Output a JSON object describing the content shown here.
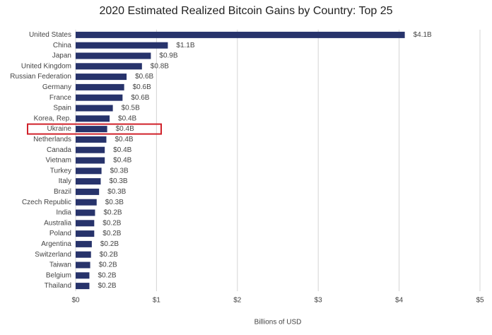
{
  "chart_data": {
    "type": "hbar",
    "title": "2020 Estimated Realized Bitcoin Gains by Country: Top 25",
    "x_label": "Billions of USD",
    "categories": [
      "United States",
      "China",
      "Japan",
      "United Kingdom",
      "Russian Federation",
      "Germany",
      "France",
      "Spain",
      "Korea, Rep.",
      "Ukraine",
      "Netherlands",
      "Canada",
      "Vietnam",
      "Turkey",
      "Italy",
      "Brazil",
      "Czech Republic",
      "India",
      "Australia",
      "Poland",
      "Argentina",
      "Switzerland",
      "Taiwan",
      "Belgium",
      "Thailand"
    ],
    "values": [
      4.07,
      1.14,
      0.93,
      0.82,
      0.63,
      0.6,
      0.58,
      0.46,
      0.42,
      0.39,
      0.38,
      0.36,
      0.36,
      0.32,
      0.31,
      0.29,
      0.26,
      0.24,
      0.23,
      0.23,
      0.2,
      0.19,
      0.18,
      0.17,
      0.17
    ],
    "value_labels": [
      "$4.1B",
      "$1.1B",
      "$0.9B",
      "$0.8B",
      "$0.6B",
      "$0.6B",
      "$0.6B",
      "$0.5B",
      "$0.4B",
      "$0.4B",
      "$0.4B",
      "$0.4B",
      "$0.4B",
      "$0.3B",
      "$0.3B",
      "$0.3B",
      "$0.3B",
      "$0.2B",
      "$0.2B",
      "$0.2B",
      "$0.2B",
      "$0.2B",
      "$0.2B",
      "$0.2B",
      "$0.2B"
    ],
    "color": "#27336b",
    "highlight": "Ukraine",
    "highlight_color": "#d0212a",
    "xlim": [
      0,
      5
    ],
    "xticks": [
      {
        "value": 0,
        "label": "$0"
      },
      {
        "value": 1,
        "label": "$1"
      },
      {
        "value": 2,
        "label": "$2"
      },
      {
        "value": 3,
        "label": "$3"
      },
      {
        "value": 4,
        "label": "$4"
      },
      {
        "value": 5,
        "label": "$5"
      }
    ],
    "grid": true
  }
}
